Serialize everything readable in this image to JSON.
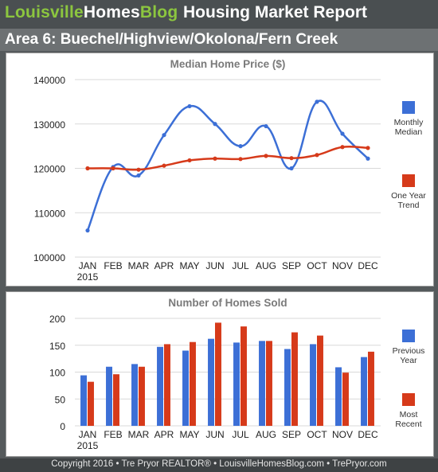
{
  "header": {
    "brand_part1": "Louisville",
    "brand_part2": "Homes",
    "brand_part3": "Blog",
    "report_title": "Housing Market Report"
  },
  "area_title": "Area 6: Buechel/Highview/Okolona/Fern Creek",
  "footer": {
    "text": "Copyright 2016 • Tre Pryor REALTOR® • LouisvilleHomesBlog.com • TrePryor.com"
  },
  "colors": {
    "blue": "#3c6fd6",
    "red": "#d63a1a",
    "brand_green": "#8cc63f",
    "grid": "#d9d9d9",
    "title_gray": "#7a7a7a"
  },
  "chart_data": [
    {
      "type": "line",
      "title": "Median Home Price ($)",
      "categories": [
        "JAN",
        "FEB",
        "MAR",
        "APR",
        "MAY",
        "JUN",
        "JUL",
        "AUG",
        "SEP",
        "OCT",
        "NOV",
        "DEC"
      ],
      "year_label": "2015",
      "ylim": [
        100000,
        140000
      ],
      "yticks": [
        "100000",
        "110000",
        "120000",
        "130000",
        "140000"
      ],
      "grid": true,
      "legend_position": "right",
      "series": [
        {
          "name": "Monthly Median",
          "color": "#3c6fd6",
          "values": [
            106000,
            120300,
            118400,
            127500,
            134000,
            130000,
            125000,
            129500,
            120000,
            135000,
            127800,
            122200
          ]
        },
        {
          "name": "One Year Trend",
          "color": "#d63a1a",
          "values": [
            120000,
            120000,
            119700,
            120600,
            121800,
            122200,
            122100,
            122800,
            122300,
            123000,
            124800,
            124600
          ]
        }
      ]
    },
    {
      "type": "bar",
      "title": "Number of Homes Sold",
      "categories": [
        "JAN",
        "FEB",
        "MAR",
        "APR",
        "MAY",
        "JUN",
        "JUL",
        "AUG",
        "SEP",
        "OCT",
        "NOV",
        "DEC"
      ],
      "year_label": "2015",
      "ylim": [
        0,
        200
      ],
      "yticks": [
        "0",
        "50",
        "100",
        "150",
        "200"
      ],
      "grid": true,
      "legend_position": "right",
      "series": [
        {
          "name": "Previous Year",
          "color": "#3c6fd6",
          "values": [
            94,
            110,
            115,
            147,
            140,
            162,
            155,
            158,
            143,
            152,
            109,
            128
          ]
        },
        {
          "name": "Most Recent",
          "color": "#d63a1a",
          "values": [
            82,
            96,
            110,
            152,
            156,
            192,
            185,
            158,
            174,
            168,
            99,
            138
          ]
        }
      ]
    }
  ]
}
